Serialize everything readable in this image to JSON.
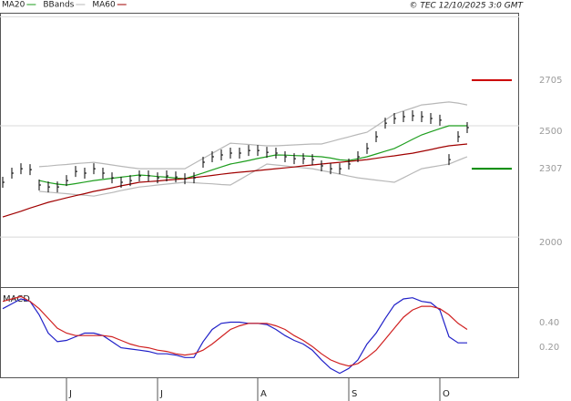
{
  "chart_data": [
    {
      "type": "ohlc",
      "credit": "© TEC 12/10/2025 3:0 GMT",
      "categories": [
        null,
        null,
        null,
        null,
        null,
        null,
        null,
        "J",
        null,
        null,
        null,
        null,
        null,
        null,
        null,
        null,
        null,
        "J",
        null,
        null,
        null,
        null,
        null,
        null,
        null,
        null,
        null,
        null,
        "A",
        null,
        null,
        null,
        null,
        null,
        null,
        null,
        null,
        null,
        "S",
        null,
        null,
        null,
        null,
        null,
        null,
        null,
        null,
        null,
        "O",
        null,
        null,
        null
      ],
      "values": [
        22.46,
        22.87,
        23.07,
        23.03,
        22.34,
        22.25,
        22.25,
        22.54,
        22.95,
        22.87,
        23.07,
        22.87,
        22.66,
        22.46,
        22.54,
        22.75,
        22.75,
        22.66,
        22.75,
        22.7,
        22.62,
        22.66,
        23.36,
        23.61,
        23.69,
        23.77,
        23.77,
        23.89,
        23.89,
        23.81,
        23.77,
        23.61,
        23.52,
        23.52,
        23.48,
        23.2,
        23.07,
        23.07,
        23.28,
        23.61,
        23.98,
        24.51,
        25.12,
        25.33,
        25.41,
        25.45,
        25.41,
        25.33,
        25.25,
        23.48,
        24.51,
        24.92
      ],
      "color": "#000000",
      "series": [
        {
          "name": "MA20",
          "color": "#1e9e1e",
          "values": [
            null,
            null,
            null,
            null,
            22.54,
            22.45,
            22.38,
            22.34,
            22.4,
            22.47,
            22.54,
            22.59,
            22.64,
            22.69,
            22.74,
            22.79,
            22.76,
            22.72,
            22.69,
            22.65,
            22.62,
            22.75,
            22.88,
            23.02,
            23.15,
            23.28,
            23.36,
            23.44,
            23.53,
            23.61,
            23.69,
            23.68,
            23.66,
            23.65,
            23.63,
            23.61,
            23.55,
            23.47,
            23.44,
            23.52,
            23.61,
            23.73,
            23.86,
            23.98,
            24.18,
            24.39,
            24.59,
            24.73,
            24.87,
            25.0,
            25.0,
            25.0
          ]
        },
        {
          "name": "BBands",
          "color": "#b8b8b8",
          "upper": [
            null,
            null,
            null,
            null,
            23.16,
            23.19,
            23.23,
            23.26,
            23.3,
            23.33,
            23.36,
            23.3,
            23.24,
            23.18,
            23.12,
            23.07,
            23.07,
            23.07,
            23.07,
            23.07,
            23.07,
            23.3,
            23.53,
            23.76,
            23.99,
            24.22,
            24.19,
            24.16,
            24.13,
            24.1,
            24.1,
            24.12,
            24.14,
            24.16,
            24.18,
            24.18,
            24.29,
            24.4,
            24.5,
            24.61,
            24.71,
            24.98,
            25.26,
            25.53,
            25.67,
            25.8,
            25.94,
            25.98,
            26.03,
            26.07,
            26.02,
            25.94
          ],
          "lower": [
            null,
            null,
            null,
            null,
            22.05,
            22.02,
            21.98,
            21.95,
            21.91,
            21.88,
            21.84,
            21.92,
            22.0,
            22.09,
            22.17,
            22.25,
            22.29,
            22.34,
            22.38,
            22.42,
            22.46,
            22.44,
            22.41,
            22.39,
            22.36,
            22.34,
            22.57,
            22.81,
            23.04,
            23.28,
            23.24,
            23.2,
            23.15,
            23.11,
            23.07,
            22.99,
            22.91,
            22.83,
            22.74,
            22.66,
            22.61,
            22.56,
            22.51,
            22.46,
            22.66,
            22.87,
            23.07,
            23.14,
            23.21,
            23.28,
            23.45,
            23.61
          ]
        },
        {
          "name": "MA60",
          "color": "#a00000",
          "values": [
            20.9,
            21.03,
            21.16,
            21.3,
            21.43,
            21.56,
            21.66,
            21.76,
            21.86,
            21.95,
            22.05,
            22.13,
            22.21,
            22.3,
            22.38,
            22.46,
            22.49,
            22.52,
            22.56,
            22.59,
            22.62,
            22.67,
            22.72,
            22.77,
            22.82,
            22.87,
            22.91,
            22.95,
            22.99,
            23.03,
            23.07,
            23.11,
            23.15,
            23.2,
            23.24,
            23.28,
            23.32,
            23.36,
            23.4,
            23.44,
            23.48,
            23.54,
            23.6,
            23.65,
            23.71,
            23.77,
            23.85,
            23.93,
            24.02,
            24.1,
            24.14,
            24.18
          ]
        }
      ],
      "annotations": [
        {
          "value": 27.05,
          "label": "2705",
          "color": "#cc0000"
        },
        {
          "value": 23.07,
          "label": "2307",
          "color": "#008800"
        }
      ],
      "ylim": [
        17.75,
        30.04
      ],
      "yticks": [
        {
          "value": 25,
          "label": "2500"
        },
        {
          "value": 20,
          "label": "2000"
        }
      ],
      "grid": true
    },
    {
      "type": "line",
      "title": "MACD",
      "series": [
        {
          "color": "#2020c8",
          "values": [
            0.47,
            0.51,
            0.55,
            0.53,
            0.42,
            0.27,
            0.2,
            0.21,
            0.24,
            0.27,
            0.27,
            0.25,
            0.2,
            0.15,
            0.14,
            0.13,
            0.12,
            0.1,
            0.1,
            0.09,
            0.07,
            0.07,
            0.2,
            0.3,
            0.35,
            0.36,
            0.36,
            0.35,
            0.35,
            0.34,
            0.3,
            0.25,
            0.21,
            0.18,
            0.13,
            0.05,
            -0.02,
            -0.06,
            -0.02,
            0.05,
            0.18,
            0.27,
            0.39,
            0.5,
            0.55,
            0.56,
            0.53,
            0.52,
            0.46,
            0.24,
            0.19,
            0.19
          ]
        },
        {
          "color": "#d02020",
          "values": [
            0.53,
            0.55,
            0.57,
            0.53,
            0.47,
            0.39,
            0.31,
            0.27,
            0.25,
            0.25,
            0.25,
            0.25,
            0.24,
            0.21,
            0.18,
            0.16,
            0.15,
            0.13,
            0.12,
            0.1,
            0.09,
            0.1,
            0.13,
            0.18,
            0.24,
            0.3,
            0.33,
            0.35,
            0.35,
            0.35,
            0.33,
            0.3,
            0.25,
            0.21,
            0.16,
            0.1,
            0.05,
            0.02,
            0.0,
            0.02,
            0.07,
            0.13,
            0.22,
            0.31,
            0.4,
            0.46,
            0.49,
            0.49,
            0.47,
            0.42,
            0.35,
            0.3
          ]
        }
      ],
      "ylim": [
        -0.1,
        0.64
      ],
      "yticks": [
        {
          "value": 0.4,
          "label": "0.40"
        },
        {
          "value": 0.2,
          "label": "0.20"
        }
      ]
    }
  ]
}
